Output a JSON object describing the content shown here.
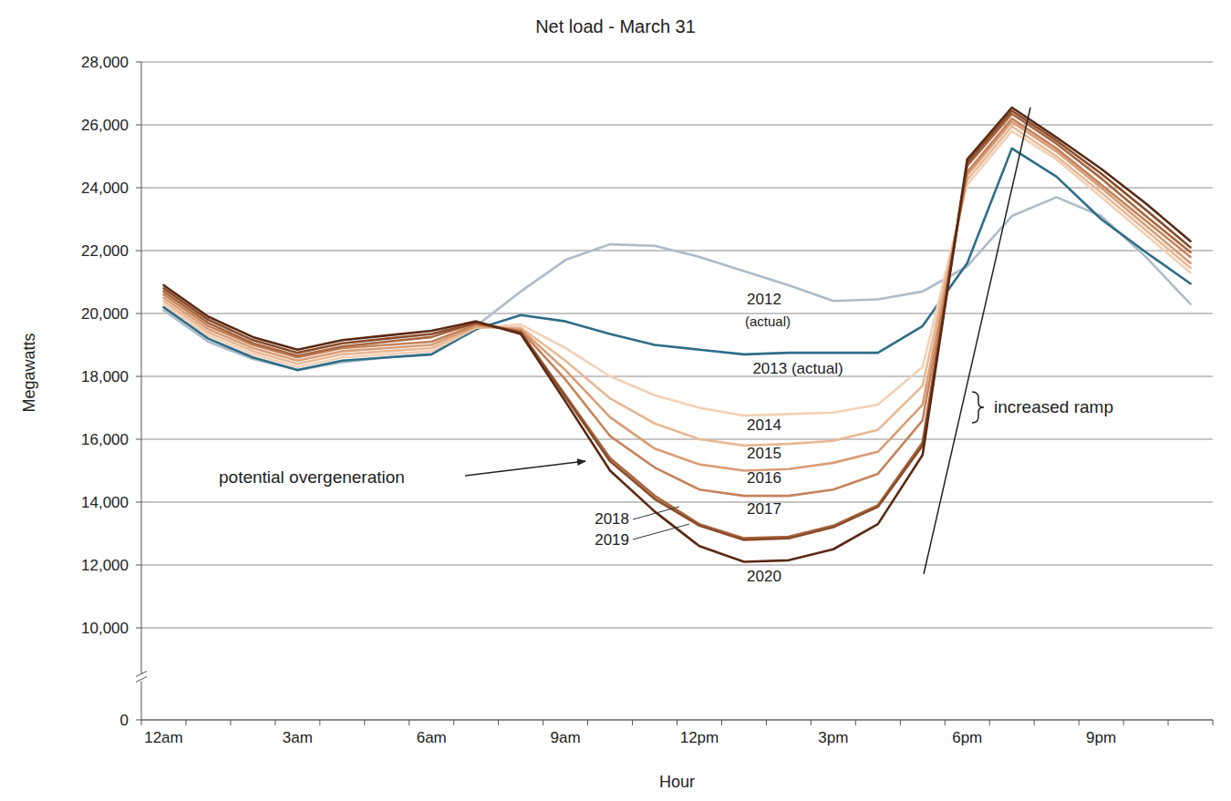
{
  "chart_data": {
    "type": "line",
    "title": "Net load - March 31",
    "x_label": "Hour",
    "y_label": "Megawatts",
    "annotations": [
      "potential overgeneration",
      "increased ramp"
    ],
    "categories": [
      "12am",
      null,
      null,
      "3am",
      null,
      null,
      "6am",
      null,
      null,
      "9am",
      null,
      null,
      "12pm",
      null,
      null,
      "3pm",
      null,
      null,
      "6pm",
      null,
      null,
      "9pm",
      null,
      null
    ],
    "ylim": [
      0,
      28000
    ],
    "yticks": [
      0,
      {
        "value": 10000,
        "label": "10,000"
      },
      {
        "value": 12000,
        "label": "12,000"
      },
      {
        "value": 14000,
        "label": "14,000"
      },
      {
        "value": 16000,
        "label": "16,000"
      },
      {
        "value": 18000,
        "label": "18,000"
      },
      {
        "value": 20000,
        "label": "20,000"
      },
      {
        "value": 22000,
        "label": "22,000"
      },
      {
        "value": 24000,
        "label": "24,000"
      },
      {
        "value": 26000,
        "label": "26,000"
      },
      {
        "value": 28000,
        "label": "28,000"
      }
    ],
    "grid": true,
    "series": [
      {
        "name": "2012 (actual)",
        "color": "#aebbc9",
        "values": [
          20100,
          19100,
          18550,
          18200,
          18450,
          18600,
          18700,
          19600,
          20700,
          21700,
          22200,
          22150,
          21800,
          21350,
          20900,
          20400,
          20450,
          20700,
          21500,
          23100,
          23700,
          23100,
          21800,
          20300
        ]
      },
      {
        "name": "2013 (actual)",
        "color": "#2e6d88",
        "values": [
          20200,
          19200,
          18600,
          18200,
          18500,
          18600,
          18700,
          19500,
          19950,
          19750,
          19350,
          19000,
          18850,
          18700,
          18750,
          18750,
          18750,
          19600,
          21600,
          25250,
          24350,
          23000,
          21950,
          20950
        ]
      },
      {
        "name": "2014",
        "color": "#f3d0b5",
        "values": [
          20300,
          19300,
          18700,
          18300,
          18600,
          18700,
          18800,
          19550,
          19650,
          18900,
          18000,
          17400,
          17000,
          16750,
          16800,
          16850,
          17100,
          18300,
          24100,
          25800,
          24900,
          23700,
          22500,
          21300
        ]
      },
      {
        "name": "2015",
        "color": "#e8b894",
        "values": [
          20400,
          19400,
          18800,
          18400,
          18700,
          18800,
          18900,
          19550,
          19550,
          18500,
          17300,
          16500,
          16000,
          15800,
          15850,
          15950,
          16300,
          17700,
          24250,
          25950,
          25000,
          23850,
          22650,
          21450
        ]
      },
      {
        "name": "2016",
        "color": "#d99d76",
        "values": [
          20500,
          19500,
          18900,
          18500,
          18800,
          18900,
          19000,
          19600,
          19500,
          18200,
          16700,
          15700,
          15200,
          15000,
          15050,
          15250,
          15600,
          17100,
          24400,
          26100,
          25150,
          24000,
          22800,
          21600
        ]
      },
      {
        "name": "2017",
        "color": "#c5835b",
        "values": [
          20600,
          19600,
          19000,
          18600,
          18900,
          19000,
          19100,
          19650,
          19450,
          17900,
          16100,
          15100,
          14400,
          14200,
          14200,
          14400,
          14900,
          16600,
          24500,
          26200,
          25250,
          24100,
          22950,
          21800
        ]
      },
      {
        "name": "2018",
        "color": "#a8673f",
        "values": [
          20700,
          19700,
          19050,
          18650,
          18950,
          19100,
          19250,
          19700,
          19400,
          17400,
          15400,
          14200,
          13300,
          12850,
          12900,
          13250,
          13900,
          15900,
          24700,
          26350,
          25400,
          24300,
          23100,
          21950
        ]
      },
      {
        "name": "2019",
        "color": "#8a4c2b",
        "values": [
          20800,
          19800,
          19150,
          18750,
          19050,
          19200,
          19350,
          19700,
          19400,
          17350,
          15300,
          14100,
          13250,
          12800,
          12850,
          13200,
          13850,
          15800,
          24800,
          26450,
          25500,
          24450,
          23300,
          22100
        ]
      },
      {
        "name": "2020",
        "color": "#5a2914",
        "values": [
          20900,
          19900,
          19250,
          18850,
          19150,
          19300,
          19450,
          19750,
          19350,
          17200,
          15000,
          13700,
          12600,
          12100,
          12150,
          12500,
          13300,
          15500,
          24900,
          26550,
          25600,
          24600,
          23500,
          22300
        ]
      }
    ]
  }
}
